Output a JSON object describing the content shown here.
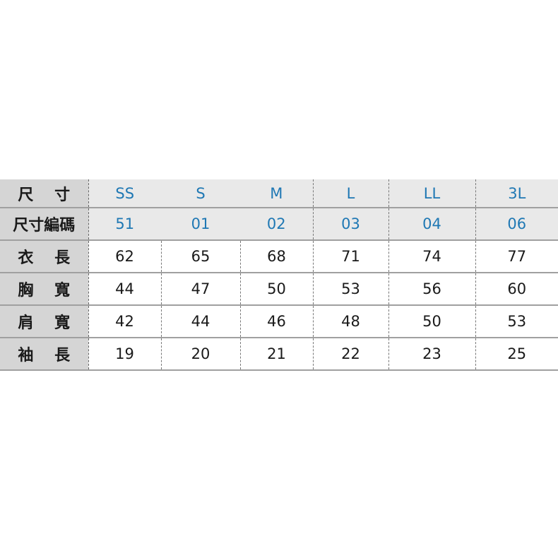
{
  "table": {
    "size_label": "尺 寸",
    "code_label": "尺寸編碼",
    "sizes": [
      "SS",
      "S",
      "M",
      "L",
      "LL",
      "3L"
    ],
    "codes": [
      "51",
      "01",
      "02",
      "03",
      "04",
      "06"
    ],
    "rows": [
      {
        "label": "衣 長",
        "values": [
          "62",
          "65",
          "68",
          "71",
          "74",
          "77"
        ]
      },
      {
        "label": "胸 寬",
        "values": [
          "44",
          "47",
          "50",
          "53",
          "56",
          "60"
        ]
      },
      {
        "label": "肩 寬",
        "values": [
          "42",
          "44",
          "46",
          "48",
          "50",
          "53"
        ]
      },
      {
        "label": "袖 長",
        "values": [
          "19",
          "20",
          "21",
          "22",
          "23",
          "25"
        ]
      }
    ],
    "colors": {
      "header_text": "#1f78b4",
      "label_bg": "#d5d5d5",
      "header_bg": "#e9e9e9"
    }
  }
}
